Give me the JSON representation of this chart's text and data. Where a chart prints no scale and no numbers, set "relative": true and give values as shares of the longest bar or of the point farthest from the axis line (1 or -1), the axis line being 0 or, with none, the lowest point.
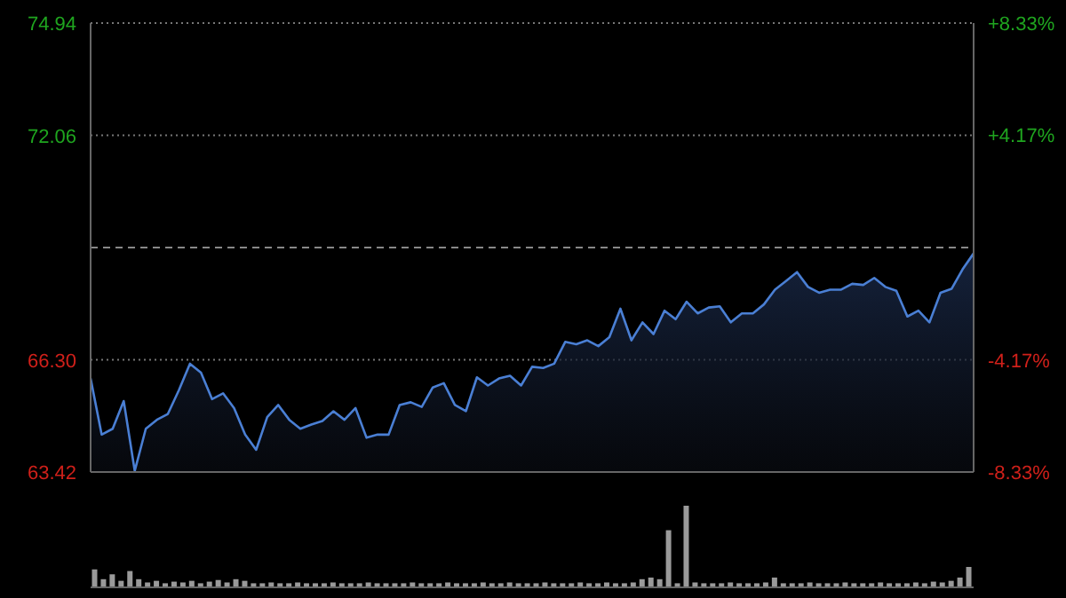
{
  "chart_data": [
    {
      "type": "area",
      "categories": [
        null,
        null,
        null,
        null,
        null,
        null,
        null,
        null,
        null,
        null,
        null,
        null,
        null,
        null,
        null,
        null,
        null,
        null,
        null,
        null,
        null,
        null,
        null,
        null,
        null,
        null,
        null,
        null,
        null,
        null,
        null,
        null,
        null,
        null,
        null,
        null,
        null,
        null,
        null,
        null,
        null,
        null,
        null,
        null,
        null,
        null,
        null,
        null,
        null,
        null,
        null,
        null,
        null,
        null,
        null,
        null,
        null,
        null,
        null,
        null,
        null,
        null,
        null,
        null,
        null,
        null,
        null,
        null,
        null,
        null,
        null,
        null,
        null,
        null,
        null,
        null,
        null,
        null,
        null,
        null,
        null
      ],
      "series": [
        {
          "color": "#4a7fd4",
          "values": [
            65.82,
            64.38,
            64.53,
            65.24,
            63.45,
            64.53,
            64.76,
            64.91,
            65.52,
            66.2,
            65.97,
            65.29,
            65.44,
            65.06,
            64.38,
            63.99,
            64.83,
            65.14,
            64.76,
            64.53,
            64.64,
            64.73,
            64.98,
            64.76,
            65.06,
            64.3,
            64.38,
            64.38,
            65.14,
            65.21,
            65.09,
            65.59,
            65.7,
            65.14,
            64.98,
            65.85,
            65.64,
            65.82,
            65.89,
            65.64,
            66.12,
            66.09,
            66.2,
            66.76,
            66.7,
            66.8,
            66.65,
            66.88,
            67.61,
            66.8,
            67.26,
            66.96,
            67.56,
            67.34,
            67.79,
            67.49,
            67.64,
            67.67,
            67.26,
            67.49,
            67.49,
            67.72,
            68.1,
            68.32,
            68.55,
            68.17,
            68.02,
            68.1,
            68.1,
            68.25,
            68.22,
            68.4,
            68.17,
            68.07,
            67.41,
            67.56,
            67.26,
            68.02,
            68.12,
            68.62,
            69.03
          ]
        }
      ],
      "ylim": [
        63.42,
        74.94
      ],
      "yticks": [
        63.42,
        {
          "value": 66.3,
          "label": "66.30"
        },
        72.06,
        74.94
      ],
      "y2lim": [
        -8.33,
        8.33
      ],
      "y2ticks": [
        {
          "value": -8.33,
          "label": "-8.33%"
        },
        {
          "value": -4.17,
          "label": "-4.17%"
        },
        {
          "value": 4.17,
          "label": "+4.17%"
        },
        {
          "value": 8.33,
          "label": "+8.33%"
        }
      ],
      "ref_lines": [
        {
          "axis": "y",
          "value": 69.18,
          "line_style": "dashed",
          "color": "#888888"
        }
      ],
      "grid": "y",
      "tick_labels": "y",
      "legend": false
    },
    {
      "type": "bar",
      "relative": true,
      "color": "#9a9a9a",
      "legend": false,
      "categories": [
        null,
        null,
        null,
        null,
        null,
        null,
        null,
        null,
        null,
        null,
        null,
        null,
        null,
        null,
        null,
        null,
        null,
        null,
        null,
        null,
        null,
        null,
        null,
        null,
        null,
        null,
        null,
        null,
        null,
        null,
        null,
        null,
        null,
        null,
        null,
        null,
        null,
        null,
        null,
        null,
        null,
        null,
        null,
        null,
        null,
        null,
        null,
        null,
        null,
        null,
        null,
        null,
        null,
        null,
        null,
        null,
        null,
        null,
        null,
        null,
        null,
        null,
        null,
        null,
        null,
        null,
        null,
        null,
        null,
        null,
        null,
        null,
        null,
        null,
        null,
        null,
        null,
        null,
        null,
        null,
        null,
        null,
        null,
        null,
        null,
        null,
        null,
        null,
        null,
        null,
        null,
        null,
        null,
        null,
        null,
        null,
        null,
        null,
        null,
        null
      ],
      "values": [
        0.22,
        0.1,
        0.16,
        0.08,
        0.2,
        0.1,
        0.06,
        0.08,
        0.05,
        0.07,
        0.06,
        0.08,
        0.05,
        0.07,
        0.09,
        0.06,
        0.1,
        0.08,
        0.05,
        0.05,
        0.06,
        0.05,
        0.05,
        0.06,
        0.05,
        0.05,
        0.05,
        0.06,
        0.05,
        0.05,
        0.05,
        0.06,
        0.05,
        0.05,
        0.05,
        0.05,
        0.06,
        0.05,
        0.05,
        0.05,
        0.06,
        0.05,
        0.05,
        0.05,
        0.06,
        0.05,
        0.05,
        0.06,
        0.05,
        0.05,
        0.05,
        0.06,
        0.05,
        0.05,
        0.05,
        0.06,
        0.05,
        0.05,
        0.06,
        0.05,
        0.05,
        0.06,
        0.1,
        0.12,
        0.1,
        0.7,
        0.05,
        1.0,
        0.06,
        0.05,
        0.05,
        0.05,
        0.06,
        0.05,
        0.05,
        0.05,
        0.06,
        0.12,
        0.05,
        0.05,
        0.05,
        0.06,
        0.05,
        0.05,
        0.05,
        0.06,
        0.05,
        0.05,
        0.05,
        0.06,
        0.05,
        0.05,
        0.05,
        0.06,
        0.05,
        0.07,
        0.06,
        0.08,
        0.12,
        0.25
      ]
    }
  ]
}
